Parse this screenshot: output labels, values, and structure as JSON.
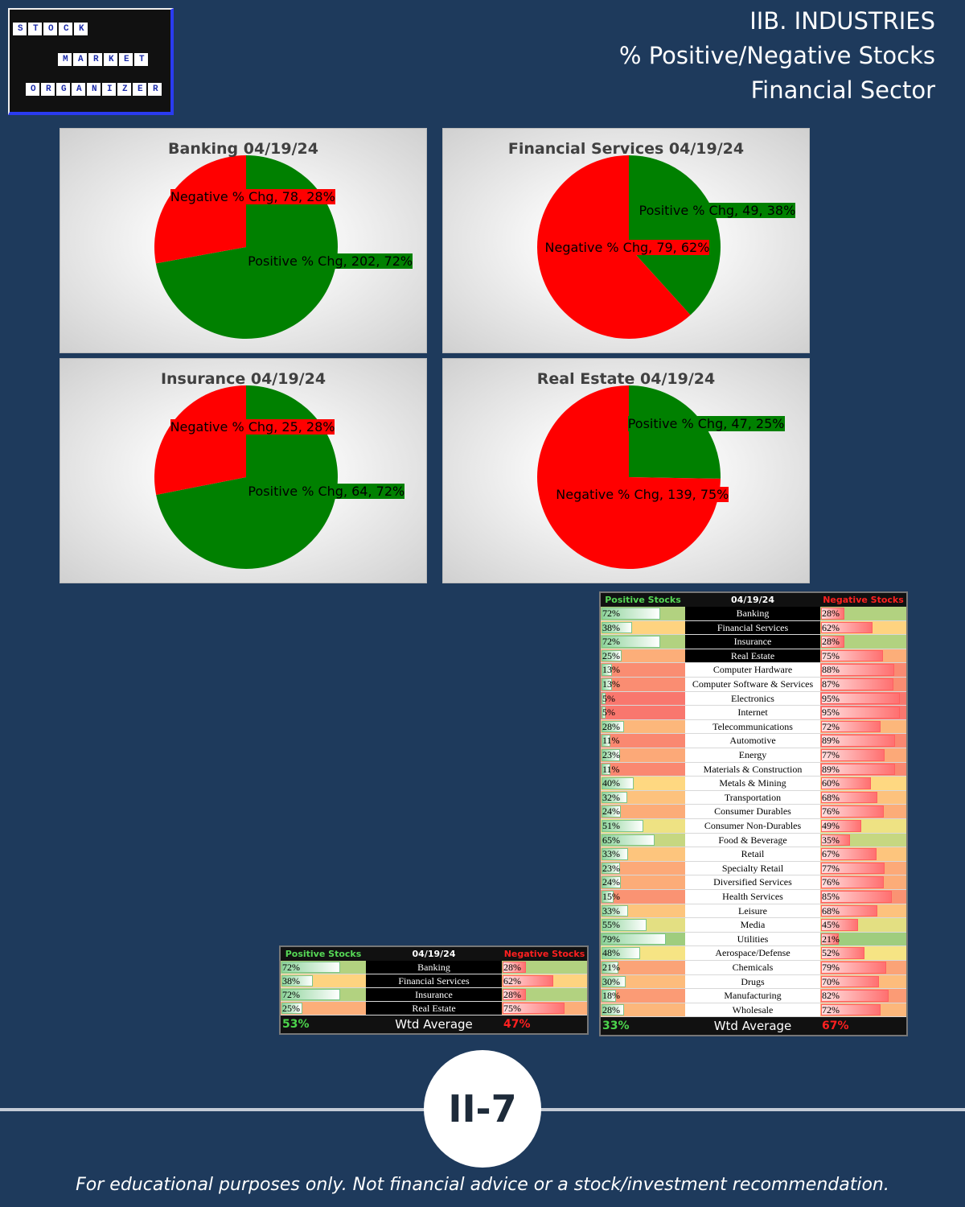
{
  "header": {
    "title_lines": [
      "IIB. INDUSTRIES",
      "% Positive/Negative Stocks",
      "Financial Sector"
    ]
  },
  "logo": {
    "words": [
      "STOCK",
      "MARKET",
      "ORGANIZER"
    ]
  },
  "chart_data": [
    {
      "type": "pie",
      "title": "Banking 04/19/24",
      "categories": [
        "Positive % Chg",
        "Negative % Chg"
      ],
      "values": [
        202,
        78
      ],
      "value_labels": [
        "Positive % Chg, 202, 72%",
        "Negative % Chg, 78, 28%"
      ],
      "colors": [
        "#008000",
        "#ff0000"
      ]
    },
    {
      "type": "pie",
      "title": "Financial Services 04/19/24",
      "categories": [
        "Positive % Chg",
        "Negative % Chg"
      ],
      "values": [
        49,
        79
      ],
      "value_labels": [
        "Positive % Chg, 49, 38%",
        "Negative % Chg, 79, 62%"
      ],
      "colors": [
        "#008000",
        "#ff0000"
      ]
    },
    {
      "type": "pie",
      "title": "Insurance 04/19/24",
      "categories": [
        "Positive % Chg",
        "Negative % Chg"
      ],
      "values": [
        64,
        25
      ],
      "value_labels": [
        "Positive % Chg, 64, 72%",
        "Negative % Chg, 25, 28%"
      ],
      "colors": [
        "#008000",
        "#ff0000"
      ]
    },
    {
      "type": "pie",
      "title": "Real Estate 04/19/24",
      "categories": [
        "Positive % Chg",
        "Negative % Chg"
      ],
      "values": [
        47,
        139
      ],
      "value_labels": [
        "Positive % Chg, 47, 25%",
        "Negative % Chg, 139, 75%"
      ],
      "colors": [
        "#008000",
        "#ff0000"
      ]
    }
  ],
  "tables": [
    {
      "header": [
        "Positive Stocks %",
        "04/19/24",
        "Negative Stocks %"
      ],
      "rows": [
        {
          "positive": {
            "value": 72,
            "label": "72%"
          },
          "name": "Banking",
          "negative": {
            "value": 28,
            "label": "28%"
          }
        },
        {
          "positive": {
            "value": 38,
            "label": "38%"
          },
          "name": "Financial Services",
          "negative": {
            "value": 62,
            "label": "62%"
          }
        },
        {
          "positive": {
            "value": 72,
            "label": "72%"
          },
          "name": "Insurance",
          "negative": {
            "value": 28,
            "label": "28%"
          }
        },
        {
          "positive": {
            "value": 25,
            "label": "25%"
          },
          "name": "Real Estate",
          "negative": {
            "value": 75,
            "label": "75%"
          }
        }
      ],
      "total": {
        "positive": "53%",
        "name": "Wtd Average",
        "negative": "47%"
      }
    },
    {
      "header": [
        "Positive Stocks %",
        "04/19/24",
        "Negative Stocks %"
      ],
      "rows": [
        {
          "positive": {
            "value": 72,
            "label": "72%"
          },
          "name": "Banking",
          "negative": {
            "value": 28,
            "label": "28%"
          }
        },
        {
          "positive": {
            "value": 38,
            "label": "38%"
          },
          "name": "Financial Services",
          "negative": {
            "value": 62,
            "label": "62%"
          }
        },
        {
          "positive": {
            "value": 72,
            "label": "72%"
          },
          "name": "Insurance",
          "negative": {
            "value": 28,
            "label": "28%"
          }
        },
        {
          "positive": {
            "value": 25,
            "label": "25%"
          },
          "name": "Real Estate",
          "negative": {
            "value": 75,
            "label": "75%"
          }
        },
        {
          "positive": {
            "value": 13,
            "label": "13%"
          },
          "name": "Computer Hardware",
          "negative": {
            "value": 88,
            "label": "88%"
          }
        },
        {
          "positive": {
            "value": 13,
            "label": "13%"
          },
          "name": "Computer Software & Services",
          "negative": {
            "value": 87,
            "label": "87%"
          }
        },
        {
          "positive": {
            "value": 5,
            "label": "5%"
          },
          "name": "Electronics",
          "negative": {
            "value": 95,
            "label": "95%"
          }
        },
        {
          "positive": {
            "value": 5,
            "label": "5%"
          },
          "name": "Internet",
          "negative": {
            "value": 95,
            "label": "95%"
          }
        },
        {
          "positive": {
            "value": 28,
            "label": "28%"
          },
          "name": "Telecommunications",
          "negative": {
            "value": 72,
            "label": "72%"
          }
        },
        {
          "positive": {
            "value": 11,
            "label": "11%"
          },
          "name": "Automotive",
          "negative": {
            "value": 89,
            "label": "89%"
          }
        },
        {
          "positive": {
            "value": 23,
            "label": "23%"
          },
          "name": "Energy",
          "negative": {
            "value": 77,
            "label": "77%"
          }
        },
        {
          "positive": {
            "value": 11,
            "label": "11%"
          },
          "name": "Materials & Construction",
          "negative": {
            "value": 89,
            "label": "89%"
          }
        },
        {
          "positive": {
            "value": 40,
            "label": "40%"
          },
          "name": "Metals & Mining",
          "negative": {
            "value": 60,
            "label": "60%"
          }
        },
        {
          "positive": {
            "value": 32,
            "label": "32%"
          },
          "name": "Transportation",
          "negative": {
            "value": 68,
            "label": "68%"
          }
        },
        {
          "positive": {
            "value": 24,
            "label": "24%"
          },
          "name": "Consumer Durables",
          "negative": {
            "value": 76,
            "label": "76%"
          }
        },
        {
          "positive": {
            "value": 51,
            "label": "51%"
          },
          "name": "Consumer Non-Durables",
          "negative": {
            "value": 49,
            "label": "49%"
          }
        },
        {
          "positive": {
            "value": 65,
            "label": "65%"
          },
          "name": "Food & Beverage",
          "negative": {
            "value": 35,
            "label": "35%"
          }
        },
        {
          "positive": {
            "value": 33,
            "label": "33%"
          },
          "name": "Retail",
          "negative": {
            "value": 67,
            "label": "67%"
          }
        },
        {
          "positive": {
            "value": 23,
            "label": "23%"
          },
          "name": "Specialty Retail",
          "negative": {
            "value": 77,
            "label": "77%"
          }
        },
        {
          "positive": {
            "value": 24,
            "label": "24%"
          },
          "name": "Diversified Services",
          "negative": {
            "value": 76,
            "label": "76%"
          }
        },
        {
          "positive": {
            "value": 15,
            "label": "15%"
          },
          "name": "Health Services",
          "negative": {
            "value": 85,
            "label": "85%"
          }
        },
        {
          "positive": {
            "value": 33,
            "label": "33%"
          },
          "name": "Leisure",
          "negative": {
            "value": 68,
            "label": "68%"
          }
        },
        {
          "positive": {
            "value": 55,
            "label": "55%"
          },
          "name": "Media",
          "negative": {
            "value": 45,
            "label": "45%"
          }
        },
        {
          "positive": {
            "value": 79,
            "label": "79%"
          },
          "name": "Utilities",
          "negative": {
            "value": 21,
            "label": "21%"
          }
        },
        {
          "positive": {
            "value": 48,
            "label": "48%"
          },
          "name": "Aerospace/Defense",
          "negative": {
            "value": 52,
            "label": "52%"
          }
        },
        {
          "positive": {
            "value": 21,
            "label": "21%"
          },
          "name": "Chemicals",
          "negative": {
            "value": 79,
            "label": "79%"
          }
        },
        {
          "positive": {
            "value": 30,
            "label": "30%"
          },
          "name": "Drugs",
          "negative": {
            "value": 70,
            "label": "70%"
          }
        },
        {
          "positive": {
            "value": 18,
            "label": "18%"
          },
          "name": "Manufacturing",
          "negative": {
            "value": 82,
            "label": "82%"
          }
        },
        {
          "positive": {
            "value": 28,
            "label": "28%"
          },
          "name": "Wholesale",
          "negative": {
            "value": 72,
            "label": "72%"
          }
        }
      ],
      "total": {
        "positive": "33%",
        "name": "Wtd Average",
        "negative": "67%"
      }
    }
  ],
  "page_number": "II-7",
  "footer": "For educational purposes only. Not financial advice or a stock/investment recommendation."
}
